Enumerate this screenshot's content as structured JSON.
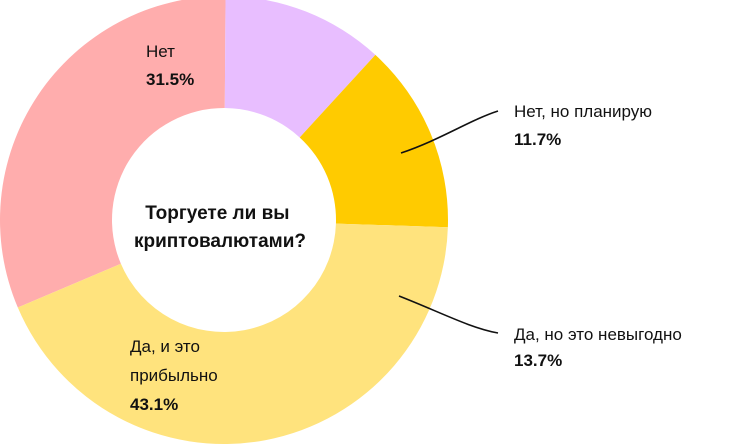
{
  "chart_data": {
    "type": "pie",
    "center_title": [
      "Торгуете ли вы",
      "криптовалютами?"
    ],
    "slices": [
      {
        "label": [
          "Нет"
        ],
        "value": 31.5,
        "value_label": "31.5%",
        "color": "#FFADAD"
      },
      {
        "label": [
          "Нет, но планирую"
        ],
        "value": 11.7,
        "value_label": "11.7%",
        "color": "#E8BEFF"
      },
      {
        "label": [
          "Да, но это невыгодно"
        ],
        "value": 13.7,
        "value_label": "13.7%",
        "color": "#FFCB00"
      },
      {
        "label": [
          "Да, и это",
          "прибыльно"
        ],
        "value": 43.1,
        "value_label": "43.1%",
        "color": "#FFE37D"
      }
    ]
  }
}
